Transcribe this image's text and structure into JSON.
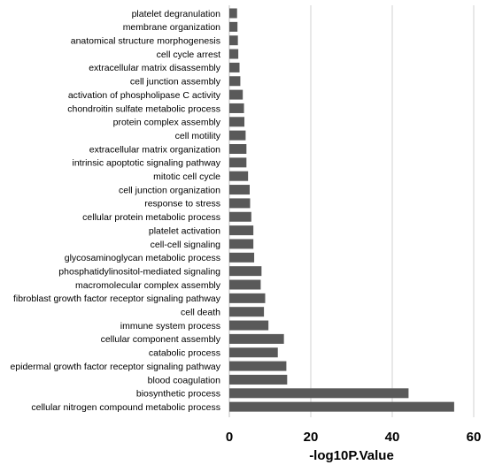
{
  "chart_data": {
    "type": "bar",
    "orientation": "horizontal",
    "title": "",
    "xlabel": "-log10P.Value",
    "ylabel": "",
    "xlim": [
      0,
      60
    ],
    "xticks": [
      0,
      20,
      40,
      60
    ],
    "grid": true,
    "bar_color": "#595959",
    "categories": [
      "platelet degranulation",
      "membrane organization",
      "anatomical structure morphogenesis",
      "cell cycle arrest",
      "extracellular matrix disassembly",
      "cell junction assembly",
      "activation of phospholipase C activity",
      "chondroitin sulfate metabolic process",
      "protein complex assembly",
      "cell motility",
      "extracellular matrix organization",
      "intrinsic apoptotic signaling pathway",
      "mitotic cell cycle",
      "cell junction organization",
      "response to stress",
      "cellular protein metabolic process",
      "platelet activation",
      "cell-cell signaling",
      "glycosaminoglycan metabolic process",
      "phosphatidylinositol-mediated signaling",
      "macromolecular complex assembly",
      "fibroblast growth factor receptor signaling pathway",
      "cell death",
      "immune system process",
      "cellular component assembly",
      "catabolic process",
      "epidermal growth factor receptor signaling pathway",
      "blood coagulation",
      "biosynthetic process",
      "cellular nitrogen compound metabolic process"
    ],
    "values": [
      1.9,
      2.0,
      2.1,
      2.2,
      2.5,
      2.7,
      3.3,
      3.6,
      3.7,
      4.0,
      4.2,
      4.2,
      4.6,
      5.0,
      5.1,
      5.4,
      5.9,
      5.9,
      6.1,
      7.9,
      7.7,
      8.8,
      8.5,
      9.6,
      13.4,
      11.9,
      14.0,
      14.2,
      44.0,
      55.2
    ]
  }
}
